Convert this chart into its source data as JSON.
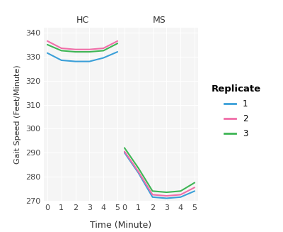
{
  "hc_data": {
    "x": [
      0,
      1,
      2,
      3,
      4,
      5
    ],
    "rep1": [
      331.5,
      328.5,
      328.0,
      328.0,
      329.5,
      332.0
    ],
    "rep2": [
      336.5,
      333.5,
      333.0,
      333.0,
      333.5,
      336.5
    ],
    "rep3": [
      335.0,
      332.5,
      332.0,
      332.0,
      332.5,
      335.5
    ]
  },
  "ms_data": {
    "x": [
      0,
      1,
      2,
      3,
      4,
      5
    ],
    "rep1": [
      290.0,
      281.5,
      271.5,
      271.0,
      271.5,
      274.0
    ],
    "rep2": [
      290.5,
      282.0,
      272.5,
      272.0,
      272.5,
      275.5
    ],
    "rep3": [
      292.0,
      283.5,
      274.0,
      273.5,
      274.0,
      277.5
    ]
  },
  "ylim": [
    270,
    342
  ],
  "yticks": [
    270,
    280,
    290,
    300,
    310,
    320,
    330,
    340
  ],
  "xticks": [
    0,
    1,
    2,
    3,
    4,
    5
  ],
  "ylabel": "Gait Speed (Feet/Minute)",
  "xlabel": "Time (Minute)",
  "panel_labels": [
    "HC",
    "MS"
  ],
  "colors": {
    "rep1": "#3A9FD8",
    "rep2": "#F06EA8",
    "rep3": "#3DB554"
  },
  "legend_title": "Replicate",
  "legend_labels": [
    "1",
    "2",
    "3"
  ],
  "strip_bg": "#C0C0C0",
  "plot_bg": "#F5F5F5",
  "grid_color": "#FFFFFF",
  "line_width": 1.5
}
